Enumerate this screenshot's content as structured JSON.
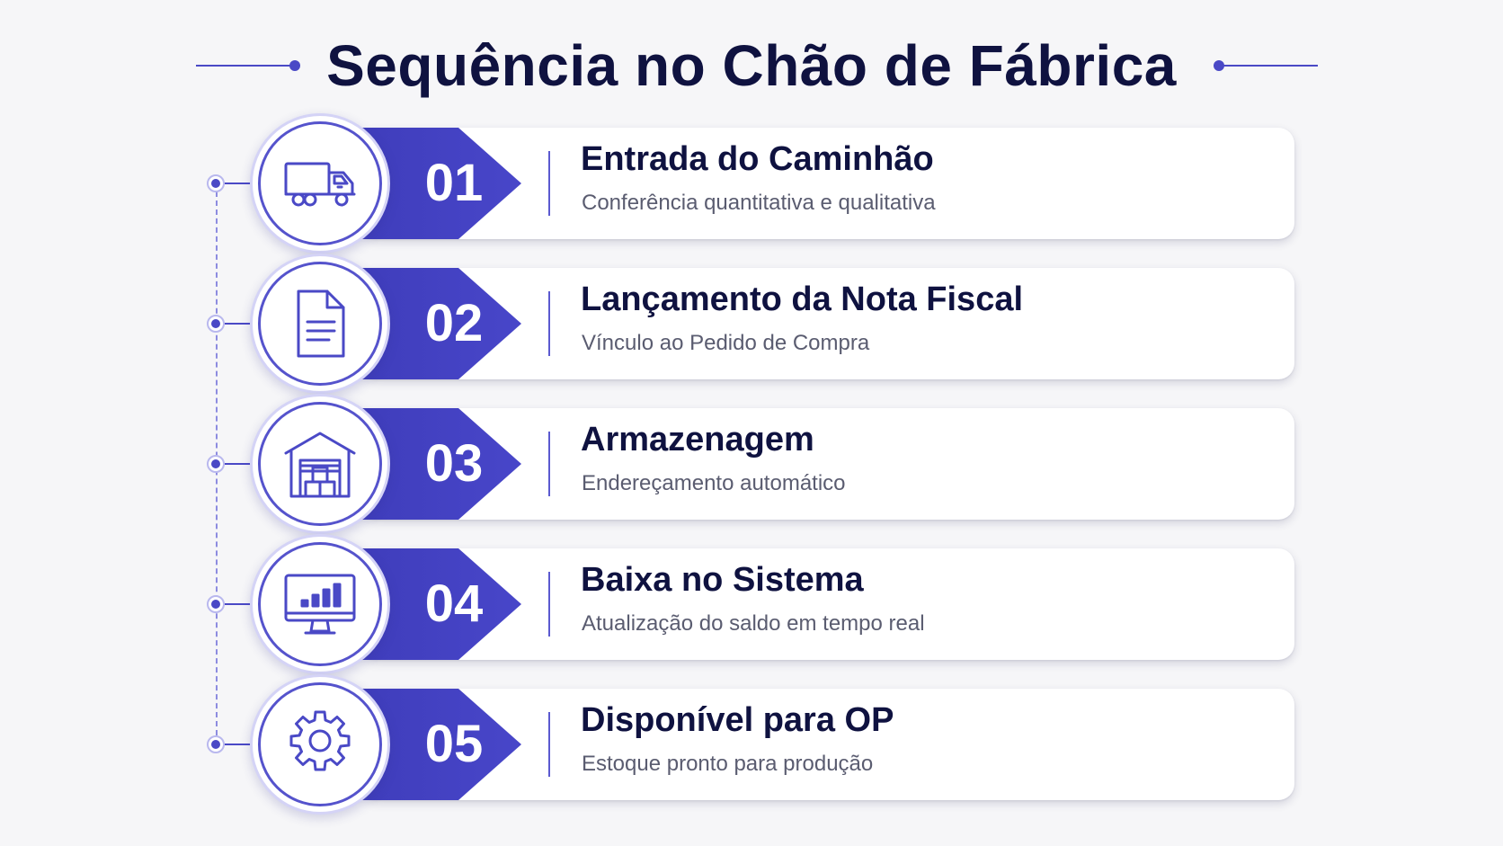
{
  "title": "Sequência no Chão de Fábrica",
  "colors": {
    "accent": "#4a49c6",
    "title_text": "#0f1240",
    "description_text": "#5a5c70",
    "background": "#f6f6f8"
  },
  "steps": [
    {
      "number": "01",
      "icon": "truck-icon",
      "title": "Entrada do Caminhão",
      "description": "Conferência quantitativa e qualitativa"
    },
    {
      "number": "02",
      "icon": "document-icon",
      "title": "Lançamento da Nota Fiscal",
      "description": "Vínculo ao Pedido de Compra"
    },
    {
      "number": "03",
      "icon": "warehouse-icon",
      "title": "Armazenagem",
      "description": "Endereçamento automático"
    },
    {
      "number": "04",
      "icon": "monitor-chart-icon",
      "title": "Baixa no Sistema",
      "description": "Atualização do saldo em tempo real"
    },
    {
      "number": "05",
      "icon": "gear-icon",
      "title": "Disponível para OP",
      "description": "Estoque pronto para produção"
    }
  ]
}
